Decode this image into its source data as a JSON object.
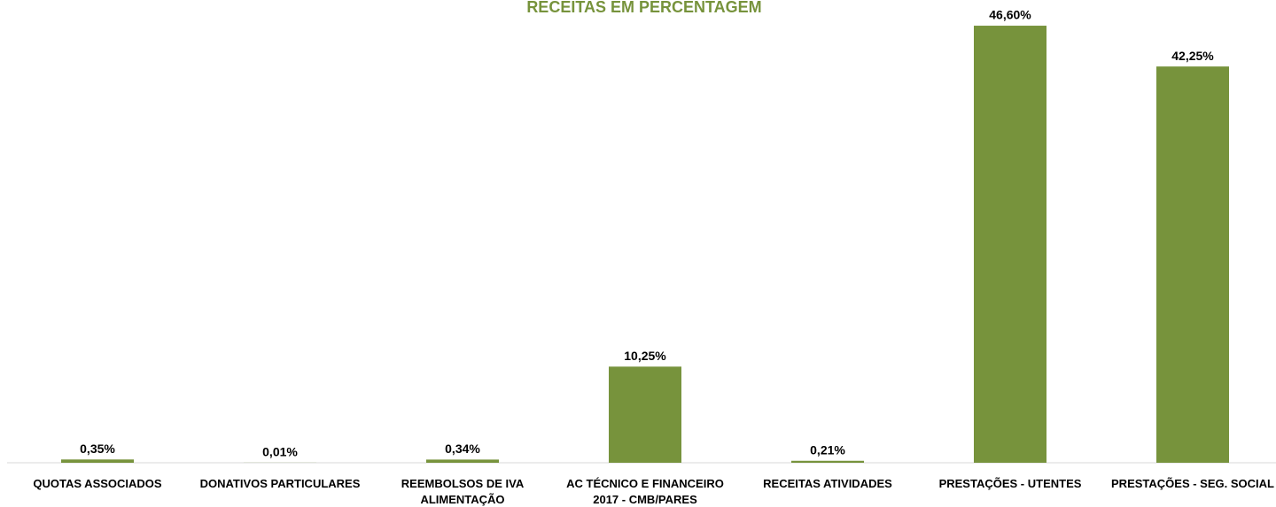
{
  "chart_data": {
    "type": "bar",
    "title": "RECEITAS EM PERCENTAGEM",
    "categories": [
      "QUOTAS ASSOCIADOS",
      "DONATIVOS PARTICULARES",
      "REEMBOLSOS DE IVA ALIMENTAÇÃO",
      "AC TÉCNICO E FINANCEIRO 2017 - CMB/PARES",
      "RECEITAS ATIVIDADES",
      "PRESTAÇÕES - UTENTES",
      "PRESTAÇÕES - SEG. SOCIAL"
    ],
    "values": [
      0.35,
      0.01,
      0.34,
      10.25,
      0.21,
      46.6,
      42.25
    ],
    "value_labels": [
      "0,35%",
      "0,01%",
      "0,34%",
      "10,25%",
      "0,21%",
      "46,60%",
      "42,25%"
    ],
    "color": "#77933c",
    "ylim": [
      0,
      50
    ]
  }
}
